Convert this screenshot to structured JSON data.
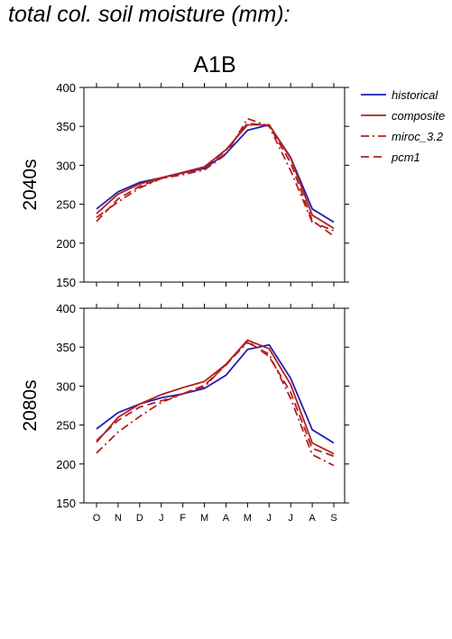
{
  "page": {
    "title": "total col. soil moisture (mm):",
    "scenario": "A1B"
  },
  "chart_data": {
    "type": "line",
    "categories": [
      "O",
      "N",
      "D",
      "J",
      "F",
      "M",
      "A",
      "M",
      "J",
      "J",
      "A",
      "S"
    ],
    "legend": {
      "placement": "top-right",
      "entries": [
        {
          "name": "historical",
          "color": "#1f1fb4",
          "dash": "solid"
        },
        {
          "name": "composite",
          "color": "#b21f1f",
          "dash": "solid"
        },
        {
          "name": "miroc_3.2",
          "color": "#b21f1f",
          "dash": "dashdot"
        },
        {
          "name": "pcm1",
          "color": "#b21f1f",
          "dash": "dashed"
        }
      ]
    },
    "panels": [
      {
        "label": "2040s",
        "ylim": [
          150,
          400
        ],
        "yticks": [
          150,
          200,
          250,
          300,
          350,
          400
        ],
        "series": [
          {
            "name": "historical",
            "values": [
              244,
              266,
              278,
              284,
              290,
              296,
              315,
              345,
              352,
              310,
              244,
              227
            ]
          },
          {
            "name": "composite",
            "values": [
              238,
              263,
              276,
              284,
              291,
              298,
              320,
              352,
              352,
              309,
              236,
              219
            ]
          },
          {
            "name": "miroc_3.2",
            "values": [
              233,
              253,
              271,
              283,
              288,
              294,
              314,
              360,
              350,
              293,
              227,
              216
            ]
          },
          {
            "name": "pcm1",
            "values": [
              228,
              257,
              273,
              283,
              290,
              297,
              319,
              354,
              351,
              303,
              229,
              209
            ]
          }
        ]
      },
      {
        "label": "2080s",
        "ylim": [
          150,
          400
        ],
        "yticks": [
          150,
          200,
          250,
          300,
          350,
          400
        ],
        "series": [
          {
            "name": "historical",
            "values": [
              245,
              266,
              277,
              285,
              290,
              297,
              314,
              347,
              353,
              310,
              244,
              227
            ]
          },
          {
            "name": "composite",
            "values": [
              228,
              260,
              277,
              289,
              298,
              306,
              328,
              359,
              348,
              302,
              227,
              213
            ]
          },
          {
            "name": "miroc_3.2",
            "values": [
              214,
              241,
              261,
              279,
              290,
              299,
              328,
              356,
              341,
              284,
              212,
              198
            ]
          },
          {
            "name": "pcm1",
            "values": [
              230,
              256,
              273,
              281,
              290,
              301,
              327,
              358,
              338,
              292,
              220,
              210
            ]
          }
        ]
      }
    ]
  }
}
